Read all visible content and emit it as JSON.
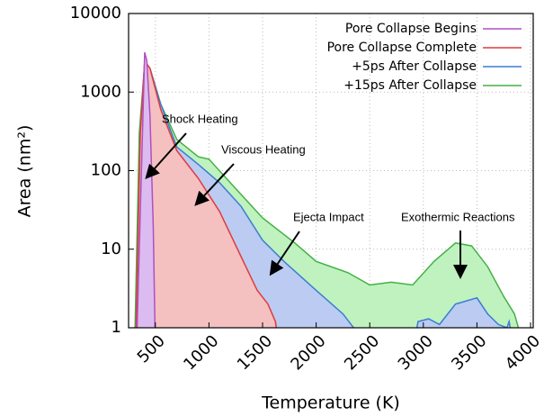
{
  "chart_data": {
    "type": "area",
    "xlabel": "Temperature (K)",
    "ylabel": "Area (nm²)",
    "xlim": [
      250,
      4025
    ],
    "xticks": [
      500,
      1000,
      1500,
      2000,
      2500,
      3000,
      3500,
      4000
    ],
    "ylim": [
      1,
      10000
    ],
    "yticks": [
      1,
      10,
      100,
      1000,
      10000
    ],
    "ylog": true,
    "grid": true,
    "legend": "upper right",
    "series": [
      {
        "name": "Pore Collapse Begins",
        "color": "#b04fc0",
        "fill": "#dcbcf0",
        "x": [
          330,
          370,
          400,
          420,
          450,
          480,
          500
        ],
        "values": [
          1,
          100,
          3200,
          2500,
          500,
          20,
          0.5
        ]
      },
      {
        "name": "Pore Collapse Complete",
        "color": "#e03a3a",
        "fill": "#f5c0c0",
        "x": [
          320,
          360,
          400,
          450,
          550,
          700,
          900,
          1100,
          1300,
          1450,
          1550,
          1620,
          1660
        ],
        "values": [
          1,
          300,
          2500,
          2000,
          600,
          180,
          80,
          30,
          8,
          3,
          2,
          1.2,
          0.5
        ]
      },
      {
        "name": "+5ps After Collapse",
        "color": "#3a7ed0",
        "fill": "#bccbf2",
        "x": [
          320,
          360,
          400,
          450,
          550,
          700,
          900,
          1100,
          1300,
          1500,
          1700,
          2000,
          2250,
          2350,
          2450,
          2900,
          2950,
          3050,
          3150,
          3300,
          3500,
          3600,
          3700,
          3780,
          3800,
          3850
        ],
        "values": [
          1,
          300,
          2400,
          2000,
          700,
          200,
          120,
          70,
          35,
          13,
          7,
          3,
          1.5,
          1,
          0.5,
          0.5,
          1.2,
          1.3,
          1.1,
          2,
          2.4,
          1.5,
          1.1,
          1,
          1.2,
          0.5
        ]
      },
      {
        "name": "+15ps After Collapse",
        "color": "#44b044",
        "fill": "#bff2bf",
        "x": [
          310,
          350,
          400,
          450,
          550,
          700,
          900,
          1000,
          1200,
          1500,
          1800,
          2000,
          2300,
          2500,
          2700,
          2900,
          3100,
          3300,
          3450,
          3600,
          3750,
          3850,
          3950
        ],
        "values": [
          1,
          300,
          2300,
          2000,
          700,
          250,
          150,
          140,
          70,
          25,
          12,
          7,
          5,
          3.5,
          3.8,
          3.5,
          7,
          12,
          11,
          6,
          2.5,
          1.5,
          0.5
        ]
      }
    ],
    "annotations": [
      "Shock Heating",
      "Viscous Heating",
      "Ejecta Impact",
      "Exothermic Reactions"
    ]
  }
}
